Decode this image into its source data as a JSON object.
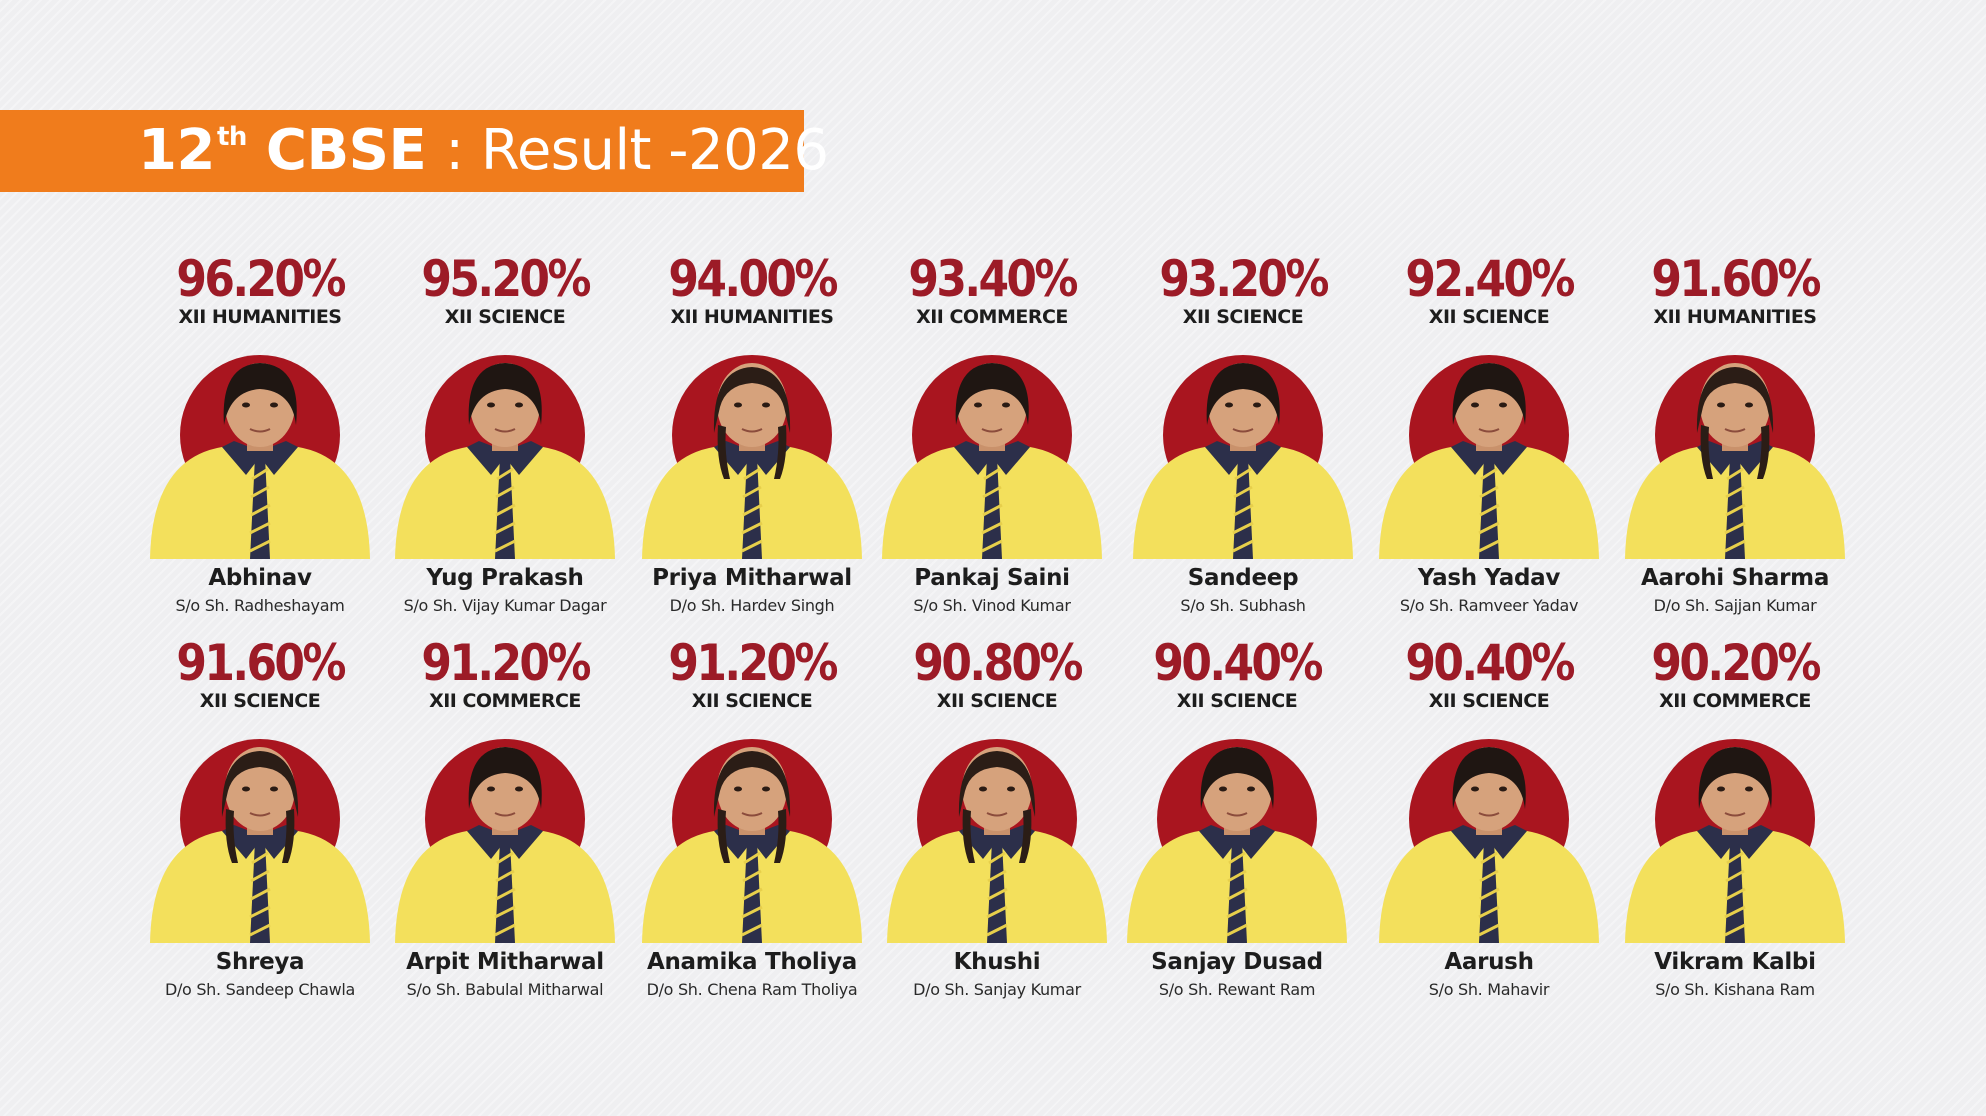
{
  "header": {
    "grade_number": "12",
    "grade_suffix": "th",
    "board": "CBSE",
    "result_label": ": Result -2026"
  },
  "colors": {
    "banner_bg": "#f07c1c",
    "percentage_text": "#9c1b27",
    "circle_bg": "#a9151f",
    "shirt": "#f3e05c"
  },
  "students": [
    {
      "percentage": "96.20%",
      "stream": "XII HUMANITIES",
      "name": "Abhinav",
      "parent": "S/o Sh. Radheshayam"
    },
    {
      "percentage": "95.20%",
      "stream": "XII SCIENCE",
      "name": "Yug Prakash",
      "parent": "S/o Sh. Vijay Kumar Dagar"
    },
    {
      "percentage": "94.00%",
      "stream": "XII HUMANITIES",
      "name": "Priya Mitharwal",
      "parent": "D/o Sh. Hardev Singh"
    },
    {
      "percentage": "93.40%",
      "stream": "XII COMMERCE",
      "name": "Pankaj Saini",
      "parent": "S/o Sh. Vinod Kumar"
    },
    {
      "percentage": "93.20%",
      "stream": "XII SCIENCE",
      "name": "Sandeep",
      "parent": "S/o Sh. Subhash"
    },
    {
      "percentage": "92.40%",
      "stream": "XII SCIENCE",
      "name": "Yash Yadav",
      "parent": "S/o Sh. Ramveer Yadav"
    },
    {
      "percentage": "91.60%",
      "stream": "XII HUMANITIES",
      "name": "Aarohi Sharma",
      "parent": "D/o Sh. Sajjan Kumar"
    },
    {
      "percentage": "91.60%",
      "stream": "XII SCIENCE",
      "name": "Shreya",
      "parent": "D/o Sh. Sandeep Chawla"
    },
    {
      "percentage": "91.20%",
      "stream": "XII COMMERCE",
      "name": "Arpit Mitharwal",
      "parent": "S/o Sh. Babulal Mitharwal"
    },
    {
      "percentage": "91.20%",
      "stream": "XII SCIENCE",
      "name": "Anamika Tholiya",
      "parent": "D/o Sh. Chena Ram Tholiya"
    },
    {
      "percentage": "90.80%",
      "stream": "XII SCIENCE",
      "name": "Khushi",
      "parent": "D/o Sh. Sanjay Kumar"
    },
    {
      "percentage": "90.40%",
      "stream": "XII SCIENCE",
      "name": "Sanjay Dusad",
      "parent": "S/o Sh. Rewant Ram"
    },
    {
      "percentage": "90.40%",
      "stream": "XII SCIENCE",
      "name": "Aarush",
      "parent": "S/o Sh. Mahavir"
    },
    {
      "percentage": "90.20%",
      "stream": "XII COMMERCE",
      "name": "Vikram Kalbi",
      "parent": "S/o Sh. Kishana Ram"
    }
  ]
}
